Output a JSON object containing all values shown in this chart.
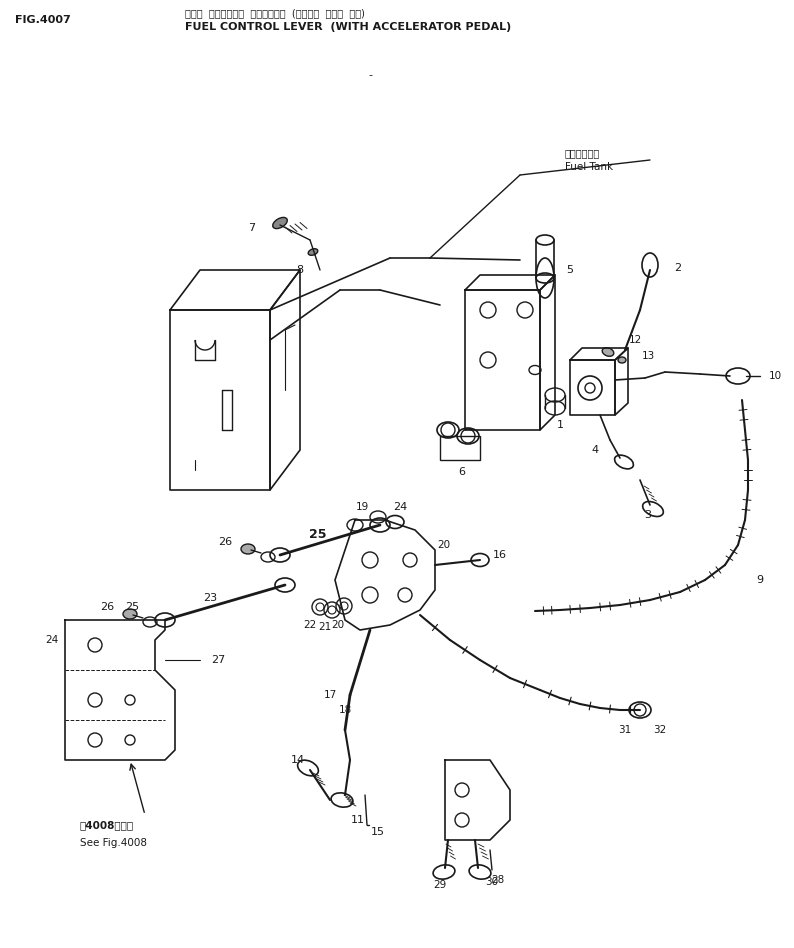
{
  "title_jp": "フェル  コントロール  リンケージ・  (アクセル  ペタル  ツキ)",
  "title_en": "FUEL CONTROL LEVER  (WITH ACCELERATOR PEDAL)",
  "fig_label": "FIG.4007",
  "fuel_tank_jp": "フェルタンク",
  "fuel_tank_en": "Fuel Tank",
  "see_fig_jp": "第4008図参照",
  "see_fig_en": "See Fig.4008",
  "bg_color": "#ffffff",
  "line_color": "#1a1a1a"
}
